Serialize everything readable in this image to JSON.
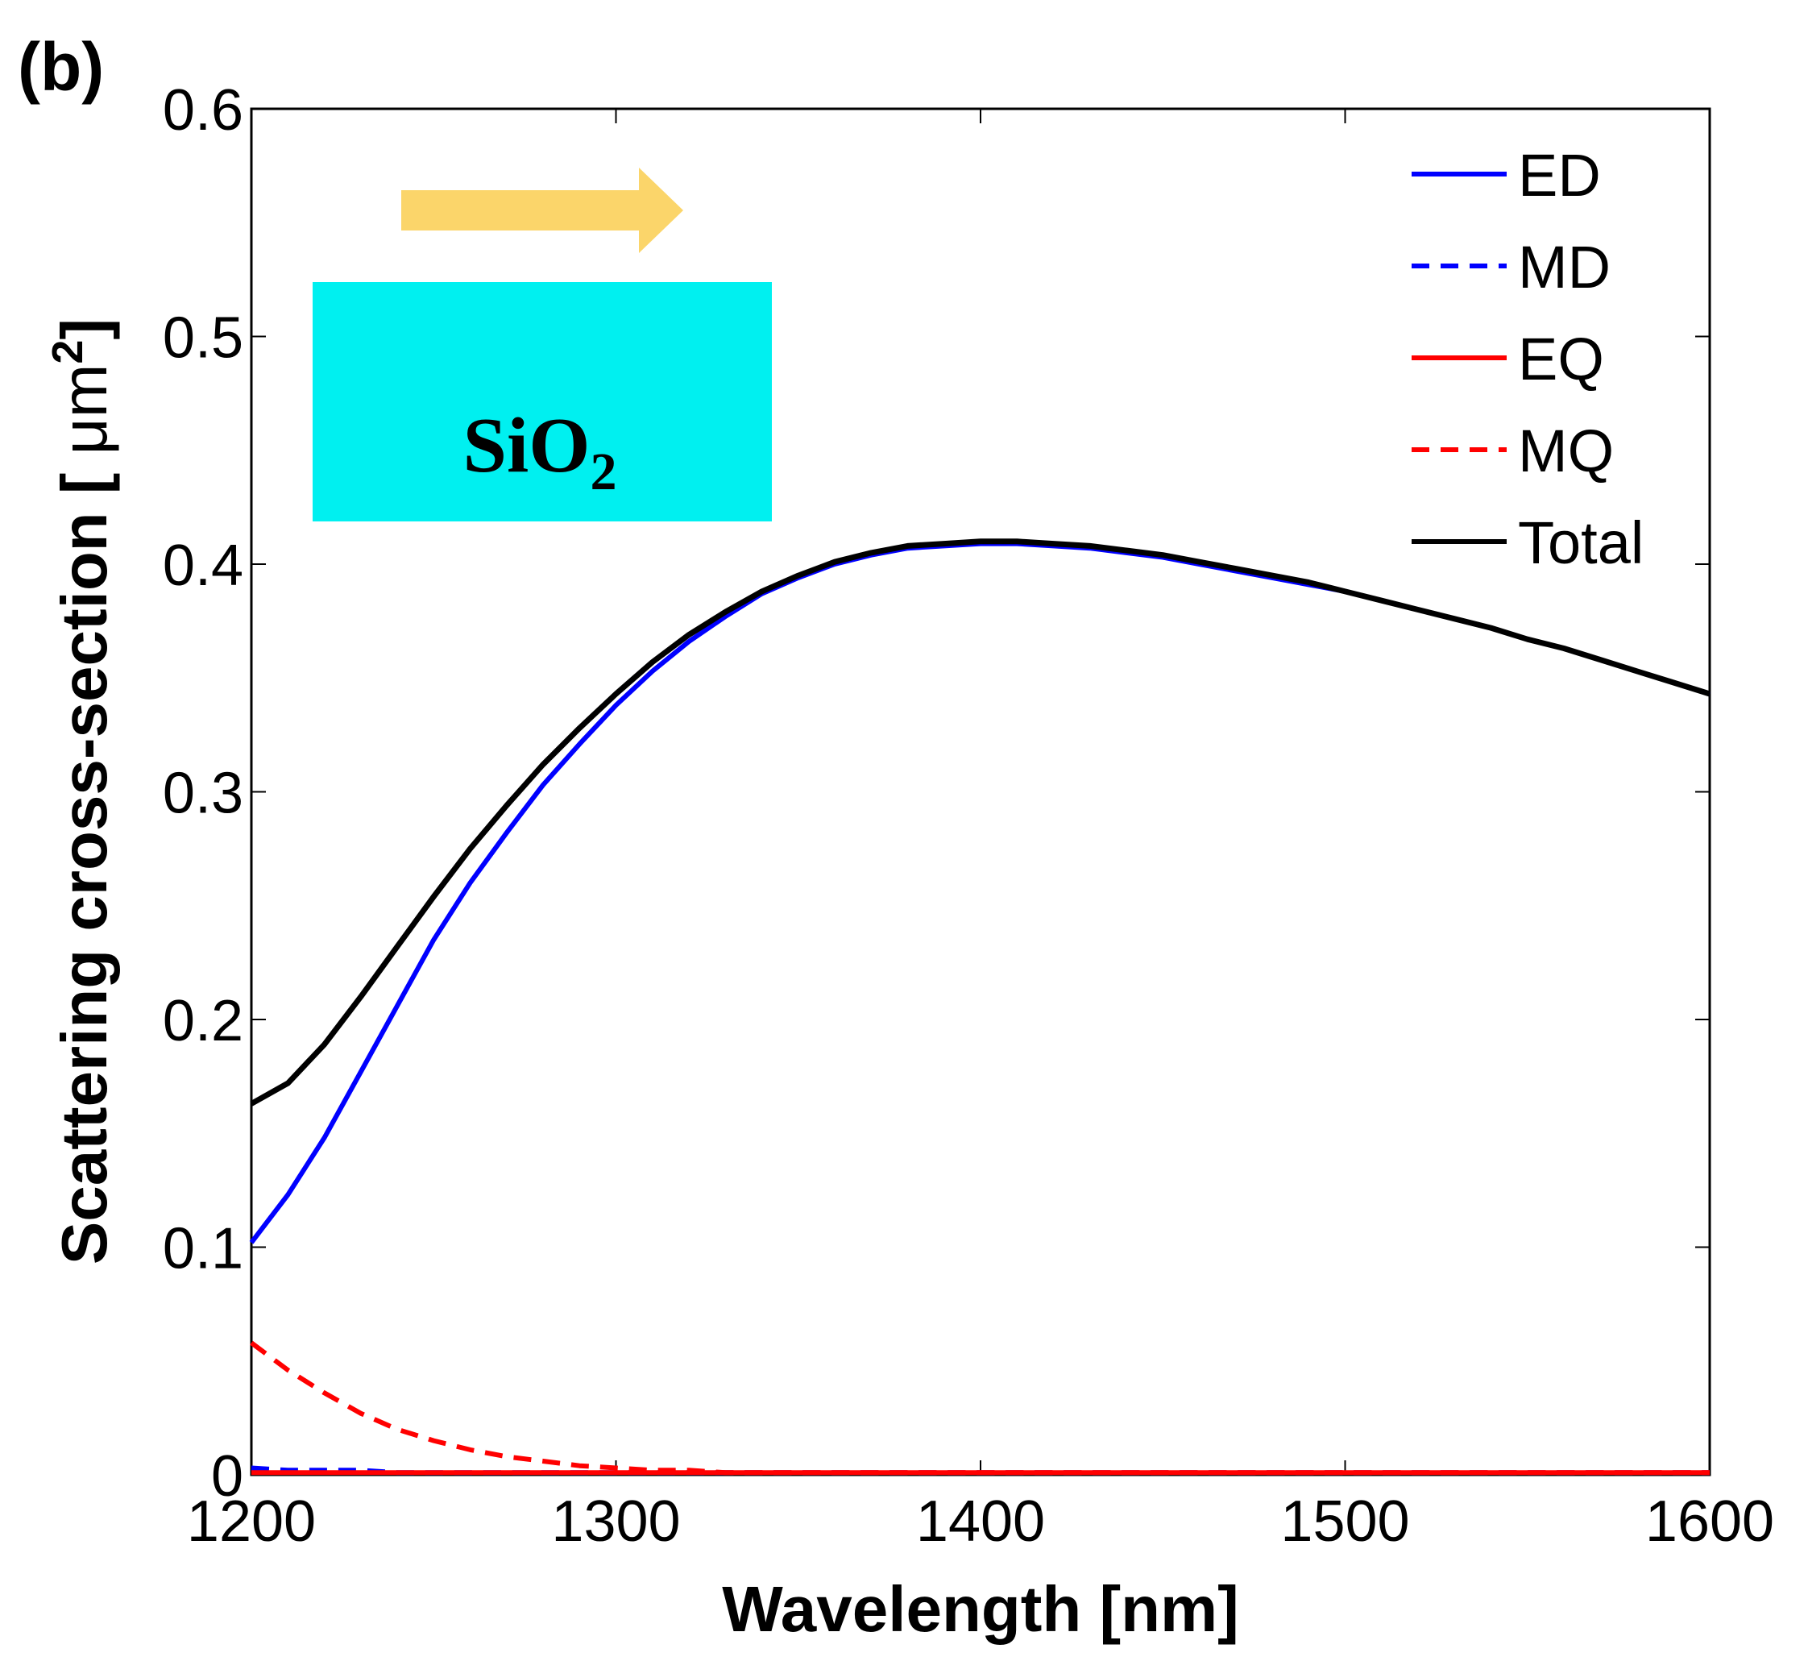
{
  "chart_data": {
    "type": "line",
    "panel_label": "(b)",
    "xlabel": "Wavelength [nm]",
    "ylabel_main": "Scattering cross-section [ ",
    "ylabel_unit": "μm",
    "ylabel_sup": "2",
    "ylabel_close": "]",
    "xlim": [
      1200,
      1600
    ],
    "ylim": [
      0,
      0.6
    ],
    "xticks": [
      1200,
      1300,
      1400,
      1500,
      1600
    ],
    "yticks": [
      0,
      0.1,
      0.2,
      0.3,
      0.4,
      0.5,
      0.6
    ],
    "x": [
      1200,
      1210,
      1220,
      1230,
      1240,
      1250,
      1260,
      1270,
      1280,
      1290,
      1300,
      1310,
      1320,
      1330,
      1340,
      1350,
      1360,
      1370,
      1380,
      1390,
      1400,
      1410,
      1420,
      1430,
      1440,
      1450,
      1460,
      1470,
      1480,
      1490,
      1500,
      1510,
      1520,
      1530,
      1540,
      1550,
      1560,
      1570,
      1580,
      1590,
      1600
    ],
    "series": [
      {
        "name": "ED",
        "color": "#0000ff",
        "dash": "solid",
        "values": [
          0.102,
          0.123,
          0.148,
          0.177,
          0.206,
          0.235,
          0.26,
          0.282,
          0.303,
          0.321,
          0.338,
          0.353,
          0.366,
          0.377,
          0.387,
          0.394,
          0.4,
          0.404,
          0.407,
          0.408,
          0.409,
          0.409,
          0.408,
          0.407,
          0.405,
          0.403,
          0.4,
          0.397,
          0.394,
          0.391,
          0.388,
          0.384,
          0.38,
          0.376,
          0.372,
          0.367,
          0.363,
          0.358,
          0.353,
          0.348,
          0.343
        ]
      },
      {
        "name": "MD",
        "color": "#0000ff",
        "dash": "dashed",
        "values": [
          0.003,
          0.002,
          0.002,
          0.002,
          0.001,
          0.001,
          0.001,
          0.001,
          0.001,
          0.001,
          0.001,
          0.001,
          0.001,
          0.001,
          0.001,
          0.001,
          0.001,
          0.001,
          0.001,
          0.001,
          0.001,
          0.001,
          0.001,
          0.001,
          0.001,
          0.001,
          0.001,
          0.001,
          0.001,
          0.001,
          0.001,
          0.001,
          0.001,
          0.001,
          0.001,
          0.001,
          0.001,
          0.001,
          0.001,
          0.001,
          0.001
        ]
      },
      {
        "name": "EQ",
        "color": "#ff0000",
        "dash": "solid",
        "values": [
          0.001,
          0.001,
          0.001,
          0.001,
          0.001,
          0.001,
          0.001,
          0.001,
          0.001,
          0.001,
          0.001,
          0.001,
          0.001,
          0.001,
          0.001,
          0.001,
          0.001,
          0.001,
          0.001,
          0.001,
          0.001,
          0.001,
          0.001,
          0.001,
          0.001,
          0.001,
          0.001,
          0.001,
          0.001,
          0.001,
          0.001,
          0.001,
          0.001,
          0.001,
          0.001,
          0.001,
          0.001,
          0.001,
          0.001,
          0.001,
          0.001
        ]
      },
      {
        "name": "MQ",
        "color": "#ff0000",
        "dash": "dashed",
        "values": [
          0.058,
          0.046,
          0.036,
          0.027,
          0.02,
          0.015,
          0.011,
          0.008,
          0.006,
          0.004,
          0.003,
          0.002,
          0.002,
          0.001,
          0.001,
          0.001,
          0.001,
          0.001,
          0.001,
          0.001,
          0.001,
          0.001,
          0.001,
          0.001,
          0.001,
          0.001,
          0.001,
          0.001,
          0.001,
          0.001,
          0.001,
          0.001,
          0.001,
          0.001,
          0.001,
          0.001,
          0.001,
          0.001,
          0.001,
          0.001,
          0.001
        ]
      },
      {
        "name": "Total",
        "color": "#000000",
        "dash": "solid",
        "values": [
          0.163,
          0.172,
          0.189,
          0.21,
          0.232,
          0.254,
          0.275,
          0.294,
          0.312,
          0.328,
          0.343,
          0.357,
          0.369,
          0.379,
          0.388,
          0.395,
          0.401,
          0.405,
          0.408,
          0.409,
          0.41,
          0.41,
          0.409,
          0.408,
          0.406,
          0.404,
          0.401,
          0.398,
          0.395,
          0.392,
          0.388,
          0.384,
          0.38,
          0.376,
          0.372,
          0.367,
          0.363,
          0.358,
          0.353,
          0.348,
          0.343
        ]
      }
    ],
    "legend": [
      "ED",
      "MD",
      "EQ",
      "MQ",
      "Total"
    ],
    "legend_position": "top-right",
    "inset": {
      "label_main": "SiO",
      "label_sub": "2",
      "box_color": "#00f0f0",
      "arrow_color": "#fbd56a",
      "arrow_direction": "right"
    }
  }
}
